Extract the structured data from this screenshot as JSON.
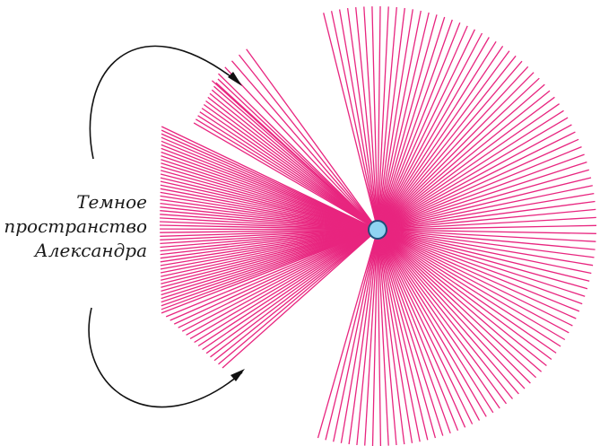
{
  "caption": {
    "line1": "Темное",
    "line2": "пространство",
    "line3": "Александра"
  },
  "colors": {
    "rays": "#e8257f",
    "droplet_fill": "#8fd3f2",
    "droplet_stroke": "#1f4f7a",
    "arrows": "#111111",
    "text": "#1a1a1a"
  },
  "icons": {
    "droplet": "circle",
    "arrowheads": "triangle"
  }
}
